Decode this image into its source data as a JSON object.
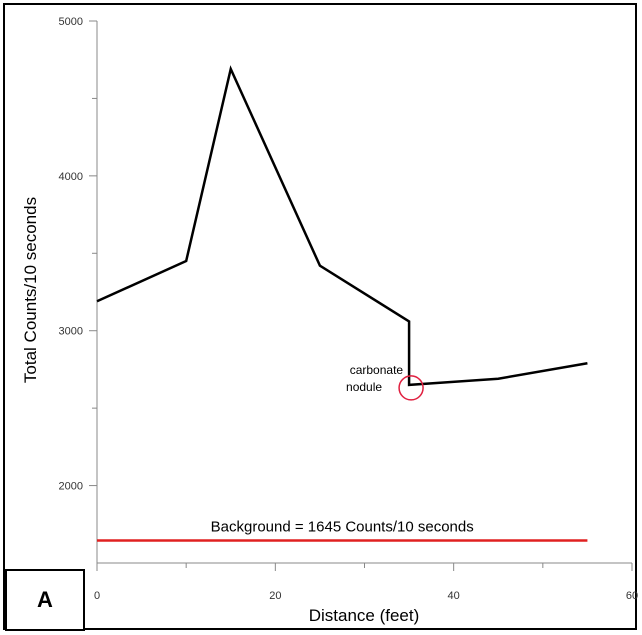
{
  "panel_label": "A",
  "chart_data": {
    "type": "line",
    "title": "",
    "xlabel": "Distance (feet)",
    "ylabel": "Total Counts/10 seconds",
    "xlim": [
      0,
      60
    ],
    "ylim": [
      1500,
      5000
    ],
    "x_ticks": [
      0,
      20,
      40,
      60
    ],
    "y_ticks": [
      2000,
      3000,
      4000,
      5000
    ],
    "series": [
      {
        "color": "#000000",
        "x": [
          0,
          10,
          15,
          25,
          35,
          35,
          45,
          55
        ],
        "y": [
          3190,
          3450,
          4690,
          3420,
          3060,
          2650,
          2690,
          2790
        ]
      }
    ],
    "background_line": {
      "value": 1645,
      "label": "Background = 1645 Counts/10 seconds",
      "color": "#e02020",
      "x_range": [
        0,
        55
      ]
    },
    "annotation": {
      "text_line1": "carbonate",
      "text_line2": "nodule",
      "x": 35,
      "y": 2650,
      "marker_color": "#e02040"
    },
    "grid": false
  }
}
